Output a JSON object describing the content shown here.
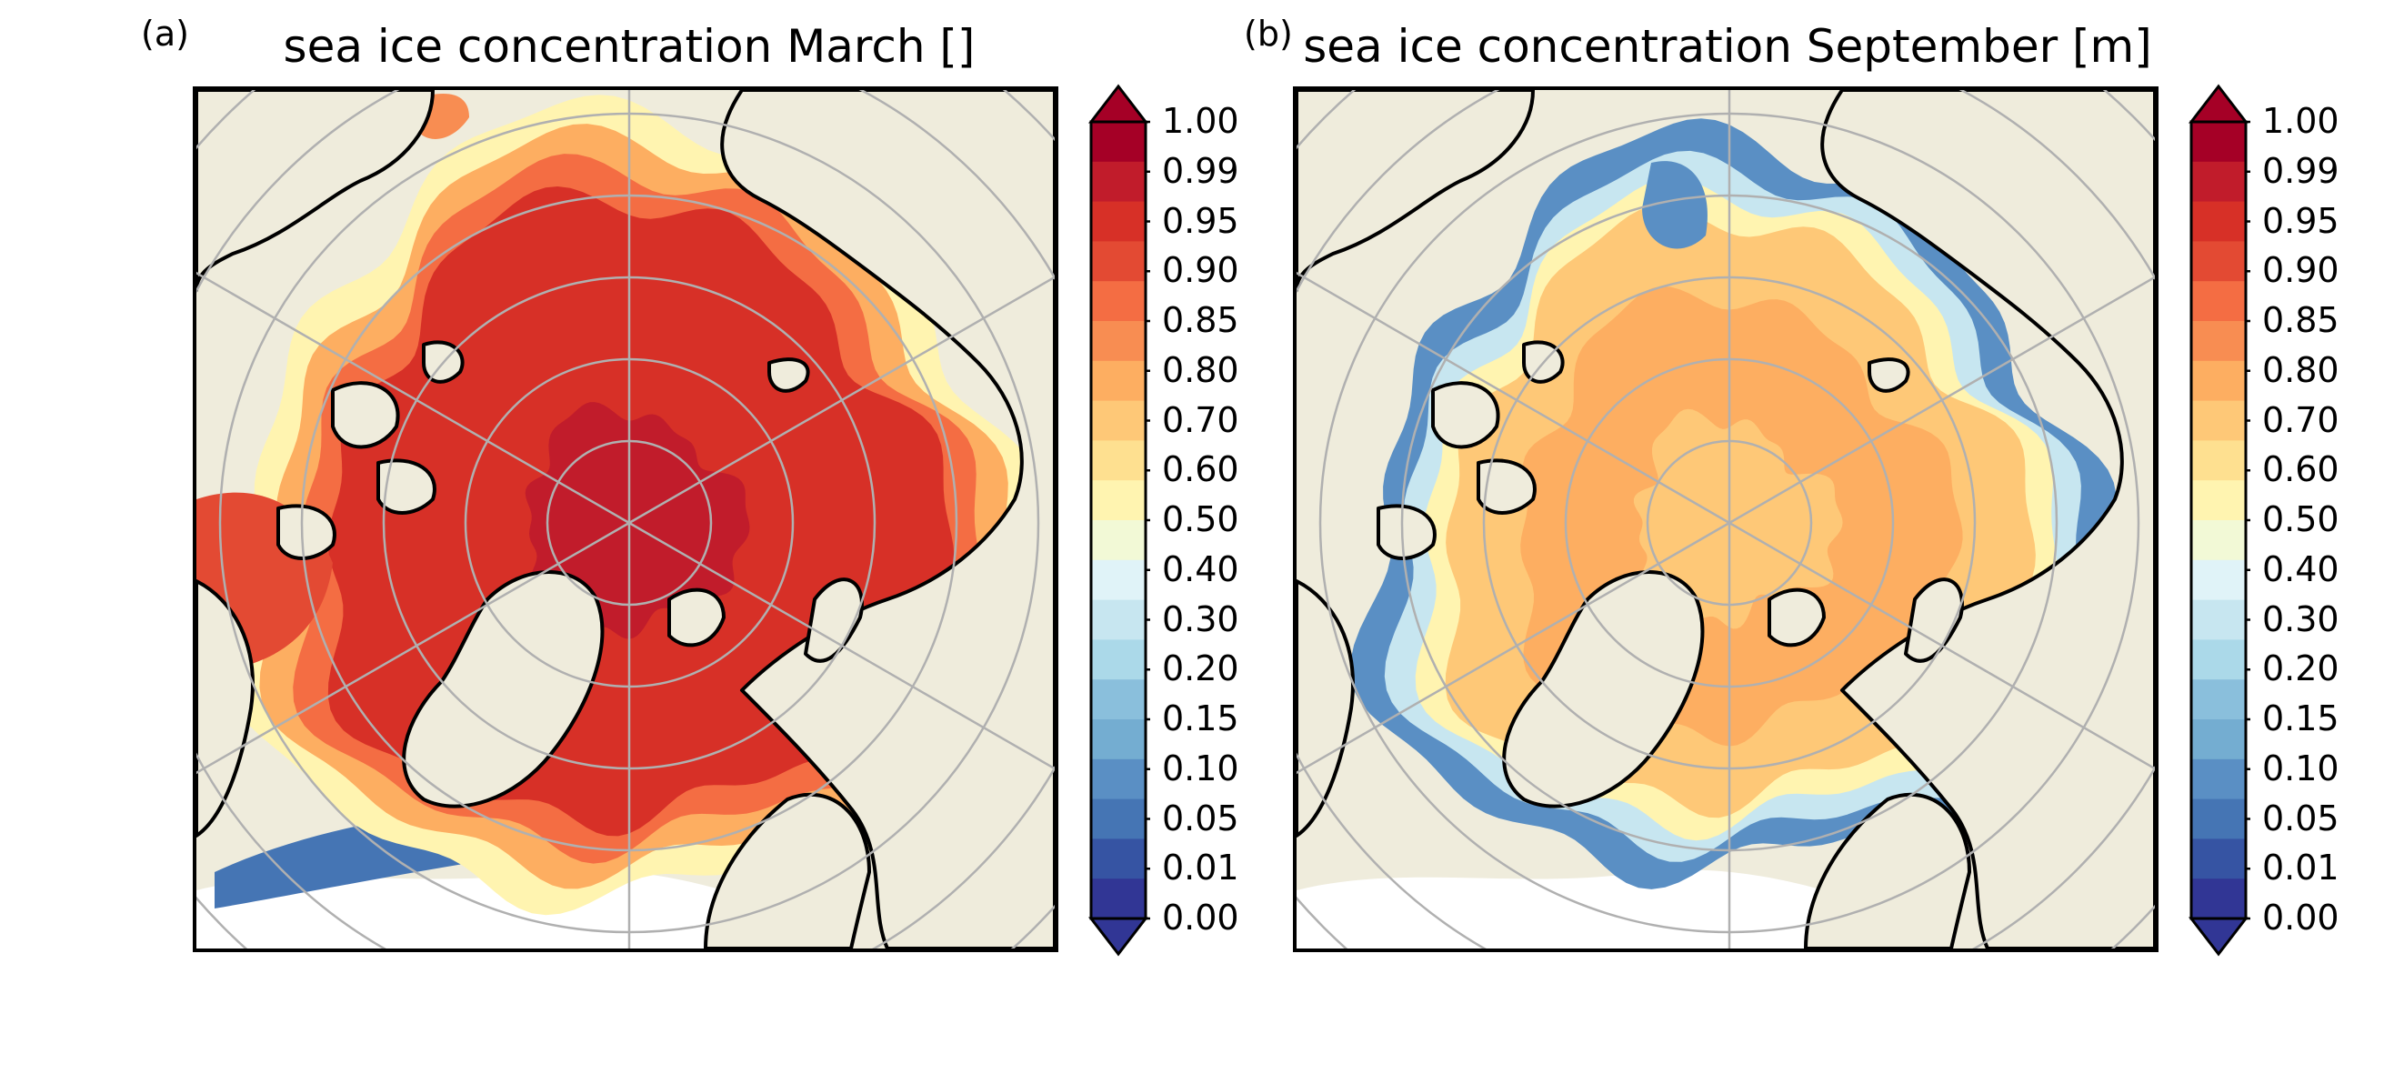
{
  "panels": [
    {
      "label": "(a)",
      "title": "sea ice concentration March []",
      "season": "march"
    },
    {
      "label": "(b)",
      "title": "sea ice concentration September [m]",
      "season": "september"
    }
  ],
  "colorbar": {
    "ticks": [
      "1.00",
      "0.99",
      "0.95",
      "0.90",
      "0.85",
      "0.80",
      "0.70",
      "0.60",
      "0.50",
      "0.40",
      "0.30",
      "0.20",
      "0.15",
      "0.10",
      "0.05",
      "0.01",
      "0.00"
    ],
    "colors": [
      "#a50026",
      "#c11c2b",
      "#d73027",
      "#e34a33",
      "#f46d43",
      "#f88d52",
      "#fdae61",
      "#fec877",
      "#fee090",
      "#fff4b0",
      "#f2f9d6",
      "#e0f3f8",
      "#c7e6f0",
      "#abd9e9",
      "#8abfdc",
      "#74add1",
      "#5a8fc4",
      "#4575b4",
      "#3654a3",
      "#313695"
    ],
    "over_color": "#a50026",
    "under_color": "#313695",
    "extend": "both"
  },
  "map_colors": {
    "land": "#efecdc",
    "coastline": "#000000",
    "gridline": "#b0b0b0",
    "open_water": "#ffffff"
  }
}
